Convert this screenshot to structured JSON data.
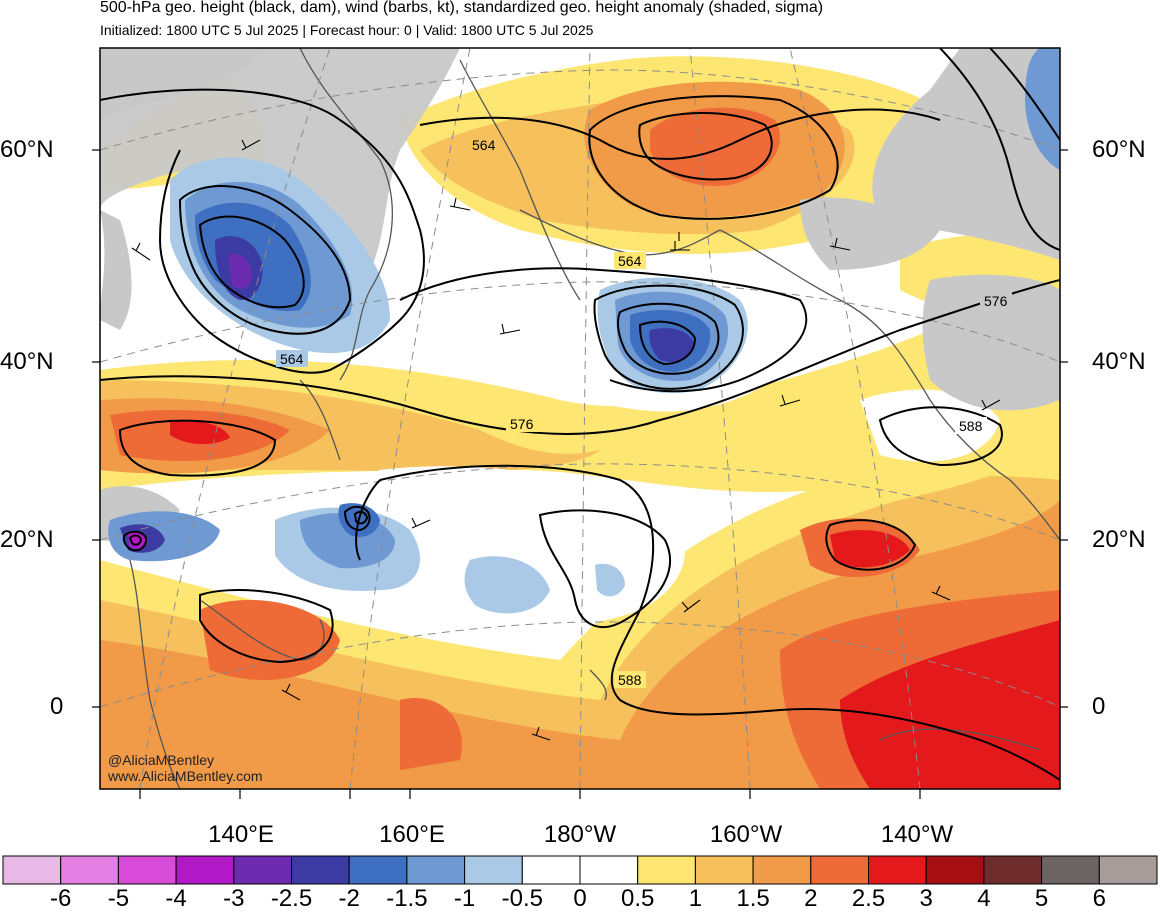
{
  "header": {
    "title": "500-hPa geo. height (black, dam), wind (barbs, kt), standardized geo. height anomaly (shaded, sigma)",
    "subtitle": "Initialized: 1800 UTC 5 Jul 2025 | Forecast hour: 0 | Valid: 1800 UTC 5 Jul 2025"
  },
  "map": {
    "lat_labels": [
      "60°N",
      "40°N",
      "20°N",
      "0"
    ],
    "lon_labels": [
      "140°E",
      "160°E",
      "180°W",
      "160°W",
      "140°W"
    ],
    "contour_labels": [
      "564",
      "564",
      "564",
      "576",
      "576",
      "588",
      "588"
    ],
    "colors": {
      "land": "#c8c8c8",
      "ocean_neutral": "#ffffff",
      "contour": "#000000",
      "coastline": "#555555",
      "grid": "#8c8c8c"
    }
  },
  "colorbar": {
    "colors": [
      "#e8b8e6",
      "#e47fe3",
      "#d84bd8",
      "#b118c6",
      "#6d2bb0",
      "#3c3aa3",
      "#3f6fc0",
      "#6f99d2",
      "#a9c9e6",
      "#ffffff",
      "#ffffff",
      "#fde672",
      "#f6c15c",
      "#f19a47",
      "#ee6a36",
      "#e3191b",
      "#a50f14",
      "#6e2c2c",
      "#6c6463",
      "#a89c9b"
    ],
    "ticks": [
      "-6",
      "-5",
      "-4",
      "-3",
      "-2.5",
      "-2",
      "-1.5",
      "-1",
      "-0.5",
      "0",
      "0.5",
      "1",
      "1.5",
      "2",
      "2.5",
      "3",
      "4",
      "5",
      "6"
    ]
  },
  "credits": {
    "handle": "@AliciaMBentley",
    "site": "www.AliciaMBentley.com"
  }
}
